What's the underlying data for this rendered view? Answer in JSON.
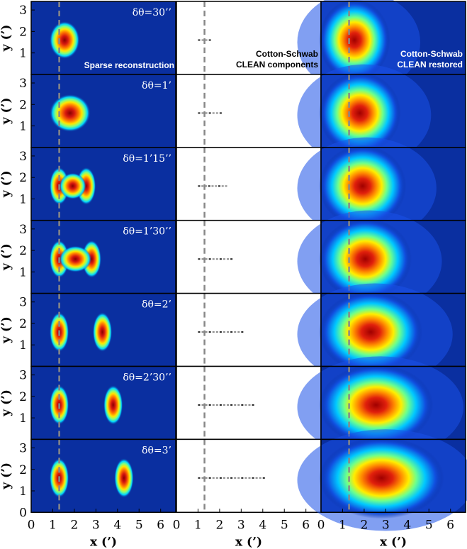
{
  "chart_data": {
    "type": "heatmap",
    "columns": [
      {
        "key": "sparse",
        "label": "Sparse reconstruction"
      },
      {
        "key": "clean_components",
        "label": "Cotton-Schwab\nCLEAN components"
      },
      {
        "key": "clean_restored",
        "label": "Cotton-Schwab\nCLEAN restored"
      }
    ],
    "rows": [
      {
        "label": "δθ=30’’",
        "sep_arcmin": 0.5
      },
      {
        "label": "δθ=1’",
        "sep_arcmin": 1.0
      },
      {
        "label": "δθ=1’15’’",
        "sep_arcmin": 1.25
      },
      {
        "label": "δθ=1’30’’",
        "sep_arcmin": 1.5
      },
      {
        "label": "δθ=2’",
        "sep_arcmin": 2.0
      },
      {
        "label": "δθ=2’30’’",
        "sep_arcmin": 2.5
      },
      {
        "label": "δθ=3’",
        "sep_arcmin": 3.0
      }
    ],
    "source_x_start": 1.3,
    "source_y": 1.6,
    "dashed_line_x": 1.3,
    "xlim": [
      0,
      6.7
    ],
    "ylim": [
      0,
      3.4
    ],
    "xlabel": "x (’)",
    "ylabel": "y (’)",
    "xticks": [
      "0",
      "1",
      "2",
      "3",
      "4",
      "5",
      "6"
    ],
    "yticks": [
      "0",
      "1",
      "2",
      "3"
    ],
    "colormap": "jet"
  }
}
